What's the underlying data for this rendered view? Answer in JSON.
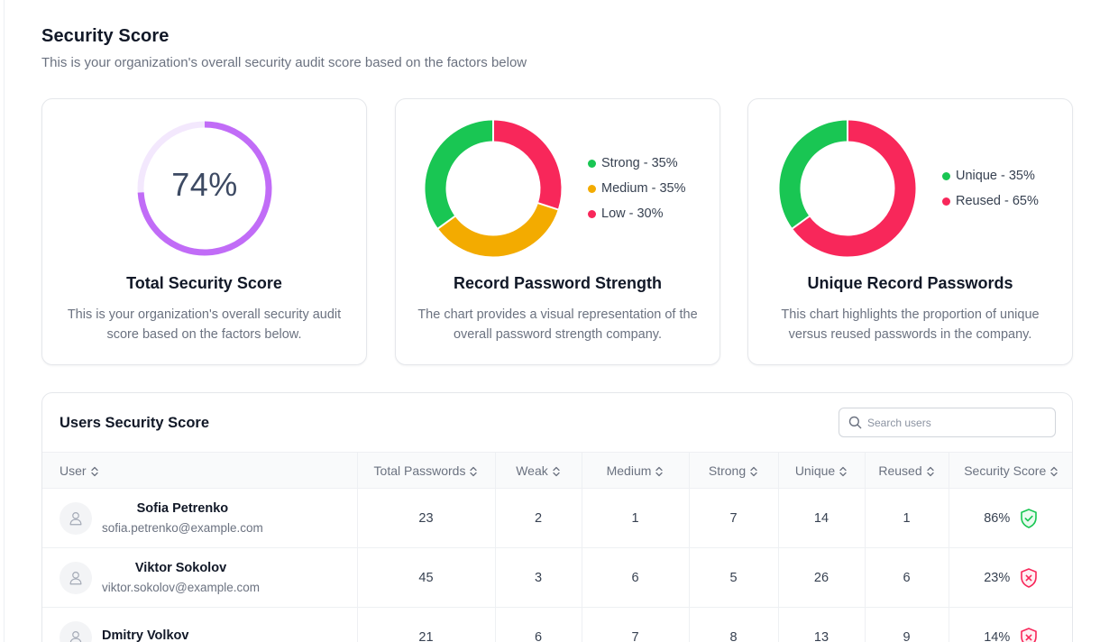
{
  "header": {
    "title": "Security Score",
    "subtitle": "This is your organization's overall security audit score based on the factors below"
  },
  "cards": {
    "total": {
      "score_label": "74%",
      "score_fraction": 0.74,
      "title": "Total Security Score",
      "description": "This is your organization's overall security audit score based on the factors below.",
      "ring_color": "#c16cf7",
      "track_color": "#f3e8fd"
    },
    "strength": {
      "title": "Record Password Strength",
      "description": "The chart provides a visual representation of the overall password strength company.",
      "legend": [
        {
          "label": "Strong - 35%",
          "color": "#19c653"
        },
        {
          "label": "Medium - 35%",
          "color": "#f3ab00"
        },
        {
          "label": "Low - 30%",
          "color": "#f8275a"
        }
      ]
    },
    "unique": {
      "title": "Unique Record Passwords",
      "description": "This chart highlights the proportion of unique versus reused passwords in the company.",
      "legend": [
        {
          "label": "Unique - 35%",
          "color": "#19c653"
        },
        {
          "label": "Reused - 65%",
          "color": "#f8275a"
        }
      ]
    }
  },
  "chart_data": [
    {
      "type": "pie",
      "title": "Total Security Score",
      "categories": [
        "Score"
      ],
      "values": [
        74
      ]
    },
    {
      "type": "pie",
      "title": "Record Password Strength",
      "categories": [
        "Strong",
        "Medium",
        "Low"
      ],
      "values": [
        35,
        35,
        30
      ],
      "colors": [
        "#19c653",
        "#f3ab00",
        "#f8275a"
      ],
      "legend": "right"
    },
    {
      "type": "pie",
      "title": "Unique Record Passwords",
      "categories": [
        "Unique",
        "Reused"
      ],
      "values": [
        35,
        65
      ],
      "colors": [
        "#19c653",
        "#f8275a"
      ],
      "legend": "right"
    }
  ],
  "users": {
    "title": "Users Security Score",
    "search_placeholder": "Search users",
    "columns": [
      "User",
      "Total Passwords",
      "Weak",
      "Medium",
      "Strong",
      "Unique",
      "Reused",
      "Security Score"
    ],
    "rows": [
      {
        "name": "Sofia Petrenko",
        "email": "sofia.petrenko@example.com",
        "total": "23",
        "weak": "2",
        "medium": "1",
        "strong": "7",
        "unique": "14",
        "reused": "1",
        "score": "86%",
        "status_icon": "shield-check-icon"
      },
      {
        "name": "Viktor Sokolov",
        "email": "viktor.sokolov@example.com",
        "total": "45",
        "weak": "3",
        "medium": "6",
        "strong": "5",
        "unique": "26",
        "reused": "6",
        "score": "23%",
        "status_icon": "shield-x-icon"
      },
      {
        "name": "Dmitry Volkov",
        "email": "",
        "total": "21",
        "weak": "6",
        "medium": "7",
        "strong": "8",
        "unique": "13",
        "reused": "9",
        "score": "14%",
        "status_icon": "shield-x-icon"
      }
    ]
  },
  "colors": {
    "good": "#19c653",
    "bad": "#f8275a"
  }
}
